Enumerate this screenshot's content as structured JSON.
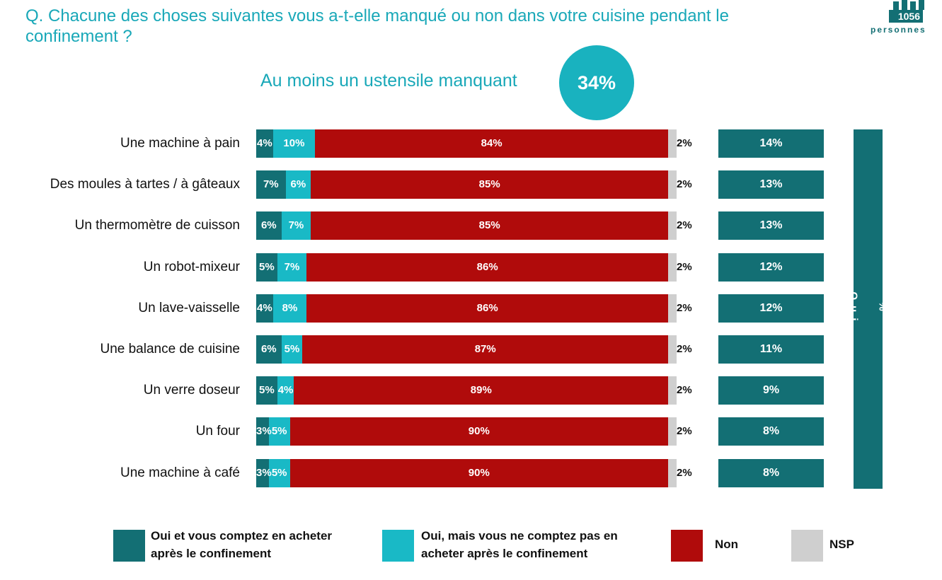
{
  "question": "Q. Chacune des choses suivantes vous a-t-elle manqué ou non dans votre cuisine pendant le confinement ?",
  "badge": {
    "count": "1056",
    "label": "personnes"
  },
  "summary": {
    "label": "Au moins un ustensile manquant",
    "value": "34%"
  },
  "oui_column_label": "% Oui",
  "colors": {
    "oui_compte": "#136f74",
    "oui_pas": "#19b9c6",
    "non": "#b00b0b",
    "nsp": "#cfcfcf",
    "accent": "#19a8b8"
  },
  "legend": [
    {
      "key": "oui_compte",
      "label": "Oui et vous comptez en acheter après le confinement"
    },
    {
      "key": "oui_pas",
      "label": "Oui, mais vous ne comptez pas en acheter après le confinement"
    },
    {
      "key": "non",
      "label": "Non"
    },
    {
      "key": "nsp",
      "label": "NSP"
    }
  ],
  "chart_data": {
    "type": "bar",
    "orientation": "horizontal",
    "stacked": true,
    "categories": [
      "Une machine à pain",
      "Des moules à tartes / à gâteaux",
      "Un thermomètre de cuisson",
      "Un robot-mixeur",
      "Un lave-vaisselle",
      "Une balance de cuisine",
      "Un verre doseur",
      "Un four",
      "Une machine à café"
    ],
    "series": [
      {
        "name": "Oui et vous comptez en acheter après le confinement",
        "values": [
          4,
          7,
          6,
          5,
          4,
          6,
          5,
          3,
          3
        ]
      },
      {
        "name": "Oui, mais vous ne comptez pas en acheter après le confinement",
        "values": [
          10,
          6,
          7,
          7,
          8,
          5,
          4,
          5,
          5
        ]
      },
      {
        "name": "Non",
        "values": [
          84,
          85,
          85,
          86,
          86,
          87,
          89,
          90,
          90
        ]
      },
      {
        "name": "NSP",
        "values": [
          2,
          2,
          2,
          2,
          2,
          2,
          2,
          2,
          2
        ]
      }
    ],
    "oui_totals": [
      14,
      13,
      13,
      12,
      12,
      11,
      9,
      8,
      8
    ],
    "unit": "%",
    "xlim": [
      0,
      100
    ],
    "legend_position": "bottom"
  }
}
